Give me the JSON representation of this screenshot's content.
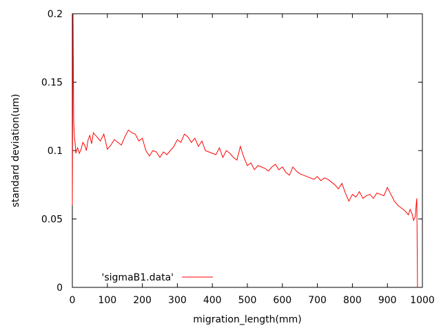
{
  "chart_data": {
    "type": "line",
    "title": "",
    "xlabel": "migration_length(mm)",
    "ylabel": "standard deviation(um)",
    "xlim": [
      0,
      1000
    ],
    "ylim": [
      0,
      0.2
    ],
    "x_ticks": [
      0,
      100,
      200,
      300,
      400,
      500,
      600,
      700,
      800,
      900,
      1000
    ],
    "x_tick_labels": [
      "0",
      "100",
      "200",
      "300",
      "400",
      "500",
      "600",
      "700",
      "800",
      "900",
      "1000"
    ],
    "y_ticks": [
      0,
      0.05,
      0.1,
      0.15,
      0.2
    ],
    "y_tick_labels": [
      "0",
      "0.05",
      "0.1",
      "0.15",
      "0.2"
    ],
    "grid": false,
    "legend": {
      "position": "bottom-left"
    },
    "series": [
      {
        "name": "'sigmaB1.data'",
        "color": "#ff0000",
        "x": [
          0,
          2,
          4,
          6,
          8,
          10,
          12,
          15,
          20,
          25,
          30,
          35,
          40,
          45,
          50,
          55,
          60,
          70,
          80,
          90,
          100,
          110,
          120,
          130,
          140,
          150,
          160,
          170,
          180,
          190,
          200,
          210,
          220,
          230,
          240,
          250,
          260,
          270,
          280,
          290,
          300,
          310,
          320,
          330,
          340,
          350,
          360,
          370,
          380,
          390,
          400,
          410,
          420,
          430,
          440,
          450,
          460,
          470,
          480,
          490,
          500,
          510,
          520,
          530,
          540,
          550,
          560,
          570,
          580,
          590,
          600,
          610,
          620,
          630,
          640,
          650,
          660,
          670,
          680,
          690,
          700,
          710,
          720,
          730,
          740,
          750,
          760,
          770,
          780,
          790,
          800,
          810,
          820,
          830,
          840,
          850,
          860,
          870,
          880,
          890,
          900,
          910,
          920,
          930,
          940,
          950,
          960,
          965,
          970,
          975,
          980,
          982,
          984,
          986
        ],
        "y": [
          0.06,
          0.2,
          0.12,
          0.11,
          0.105,
          0.098,
          0.1,
          0.102,
          0.098,
          0.101,
          0.106,
          0.104,
          0.1,
          0.108,
          0.111,
          0.105,
          0.113,
          0.11,
          0.107,
          0.112,
          0.101,
          0.104,
          0.108,
          0.106,
          0.104,
          0.11,
          0.115,
          0.113,
          0.112,
          0.107,
          0.109,
          0.1,
          0.096,
          0.1,
          0.099,
          0.095,
          0.099,
          0.097,
          0.1,
          0.103,
          0.108,
          0.106,
          0.112,
          0.11,
          0.106,
          0.109,
          0.103,
          0.107,
          0.1,
          0.099,
          0.098,
          0.097,
          0.102,
          0.095,
          0.1,
          0.098,
          0.095,
          0.093,
          0.103,
          0.095,
          0.089,
          0.091,
          0.086,
          0.089,
          0.088,
          0.087,
          0.085,
          0.088,
          0.09,
          0.086,
          0.088,
          0.084,
          0.082,
          0.088,
          0.085,
          0.083,
          0.082,
          0.081,
          0.08,
          0.079,
          0.081,
          0.078,
          0.08,
          0.079,
          0.077,
          0.075,
          0.072,
          0.076,
          0.069,
          0.063,
          0.068,
          0.066,
          0.07,
          0.065,
          0.067,
          0.068,
          0.065,
          0.069,
          0.068,
          0.067,
          0.073,
          0.068,
          0.063,
          0.06,
          0.058,
          0.056,
          0.053,
          0.057,
          0.054,
          0.049,
          0.052,
          0.06,
          0.065,
          0.0
        ]
      }
    ]
  }
}
